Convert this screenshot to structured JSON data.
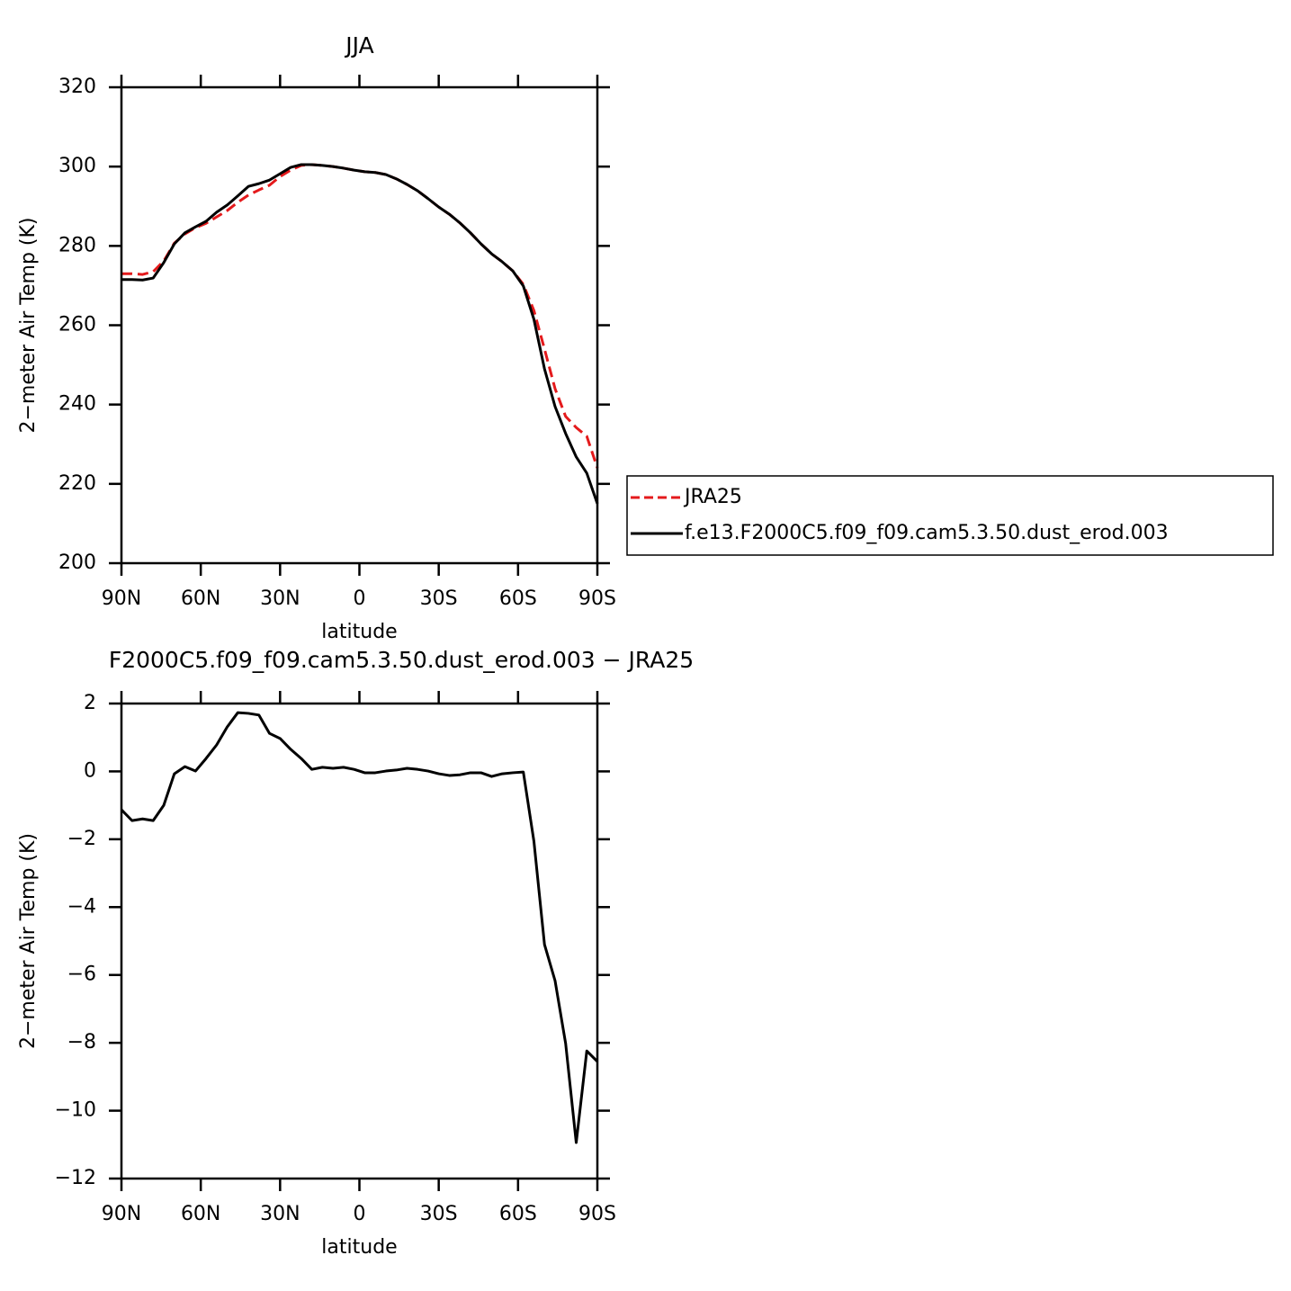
{
  "chart_data": [
    {
      "type": "line",
      "title": "JJA",
      "xlabel": "latitude",
      "ylabel": "2−meter Air Temp (K)",
      "x": [
        90,
        86,
        82,
        78,
        74,
        70,
        66,
        62,
        58,
        54,
        50,
        46,
        42,
        38,
        34,
        30,
        26,
        22,
        18,
        14,
        10,
        6,
        2,
        -2,
        -6,
        -10,
        -14,
        -18,
        -22,
        -26,
        -30,
        -34,
        -38,
        -42,
        -46,
        -50,
        -54,
        -58,
        -62,
        -66,
        -70,
        -74,
        -78,
        -82,
        -86,
        -90
      ],
      "series": [
        {
          "name": "JRA25",
          "color": "#e41a1c",
          "line_style": "dashed",
          "values": [
            273.0,
            273.0,
            272.8,
            273.5,
            276.2,
            280.7,
            283.0,
            284.6,
            285.7,
            287.3,
            288.9,
            291.0,
            292.8,
            294.1,
            295.3,
            297.5,
            299.1,
            300.3,
            300.5,
            300.3,
            300.0,
            299.6,
            299.1,
            298.7,
            298.5,
            298.0,
            296.9,
            295.5,
            293.9,
            291.9,
            289.8,
            288.0,
            285.8,
            283.3,
            280.5,
            278.0,
            276.0,
            273.7,
            270.3,
            263.7,
            254.0,
            244.0,
            237.0,
            234.2,
            232.0,
            224.0
          ]
        },
        {
          "name": "f.e13.F2000C5.f09_f09.cam5.3.50.dust_erod.003",
          "color": "#000000",
          "line_style": "solid",
          "values": [
            271.5,
            271.5,
            271.4,
            271.9,
            275.8,
            280.5,
            283.3,
            284.8,
            286.2,
            288.5,
            290.3,
            292.6,
            295.0,
            295.7,
            296.6,
            298.2,
            299.8,
            300.5,
            300.5,
            300.3,
            300.0,
            299.6,
            299.1,
            298.7,
            298.5,
            298.0,
            296.9,
            295.5,
            293.9,
            291.9,
            289.8,
            288.0,
            285.8,
            283.3,
            280.5,
            278.0,
            276.0,
            273.7,
            269.9,
            261.5,
            249.0,
            239.5,
            232.7,
            226.8,
            222.7,
            215.0
          ]
        }
      ],
      "xlim": [
        90,
        -90
      ],
      "xticks": [
        {
          "value": 90,
          "label": "90N"
        },
        {
          "value": 60,
          "label": "60N"
        },
        {
          "value": 30,
          "label": "30N"
        },
        0,
        {
          "value": -30,
          "label": "30S"
        },
        {
          "value": -60,
          "label": "60S"
        },
        {
          "value": -90,
          "label": "90S"
        }
      ],
      "ylim": [
        200,
        320
      ],
      "yticks": [
        200,
        220,
        240,
        260,
        280,
        300,
        320
      ],
      "legend": "right"
    },
    {
      "type": "line",
      "title": "F2000C5.f09_f09.cam5.3.50.dust_erod.003 − JRA25",
      "xlabel": "latitude",
      "ylabel": "2−meter Air Temp (K)",
      "x": [
        90,
        86,
        82,
        78,
        74,
        70,
        66,
        62,
        58,
        54,
        50,
        46,
        42,
        38,
        34,
        30,
        26,
        22,
        18,
        14,
        10,
        6,
        2,
        -2,
        -6,
        -10,
        -14,
        -18,
        -22,
        -26,
        -30,
        -34,
        -38,
        -42,
        -46,
        -50,
        -54,
        -58,
        -62,
        -66,
        -70,
        -74,
        -78,
        -82,
        -86,
        -90
      ],
      "series": [
        {
          "color": "#000000",
          "line_style": "solid",
          "values": [
            -1.13,
            -1.45,
            -1.4,
            -1.45,
            -1.0,
            -0.07,
            0.14,
            0.01,
            0.38,
            0.78,
            1.31,
            1.73,
            1.71,
            1.66,
            1.12,
            0.97,
            0.65,
            0.38,
            0.06,
            0.12,
            0.09,
            0.12,
            0.06,
            -0.04,
            -0.04,
            0.01,
            0.04,
            0.09,
            0.06,
            0.01,
            -0.07,
            -0.12,
            -0.1,
            -0.04,
            -0.04,
            -0.15,
            -0.07,
            -0.04,
            -0.02,
            -2.06,
            -5.1,
            -6.17,
            -8.02,
            -10.94,
            -8.24,
            -8.55
          ]
        }
      ],
      "xlim": [
        90,
        -90
      ],
      "xticks": [
        {
          "value": 90,
          "label": "90N"
        },
        {
          "value": 60,
          "label": "60N"
        },
        {
          "value": 30,
          "label": "30N"
        },
        0,
        {
          "value": -30,
          "label": "30S"
        },
        {
          "value": -60,
          "label": "60S"
        },
        {
          "value": -90,
          "label": "90S"
        }
      ],
      "ylim": [
        -12,
        2
      ],
      "yticks": [
        {
          "value": -12,
          "label": "−12"
        },
        {
          "value": -10,
          "label": "−10"
        },
        {
          "value": -8,
          "label": "−8"
        },
        {
          "value": -6,
          "label": "−6"
        },
        {
          "value": -4,
          "label": "−4"
        },
        {
          "value": -2,
          "label": "−2"
        },
        0,
        2
      ]
    }
  ]
}
